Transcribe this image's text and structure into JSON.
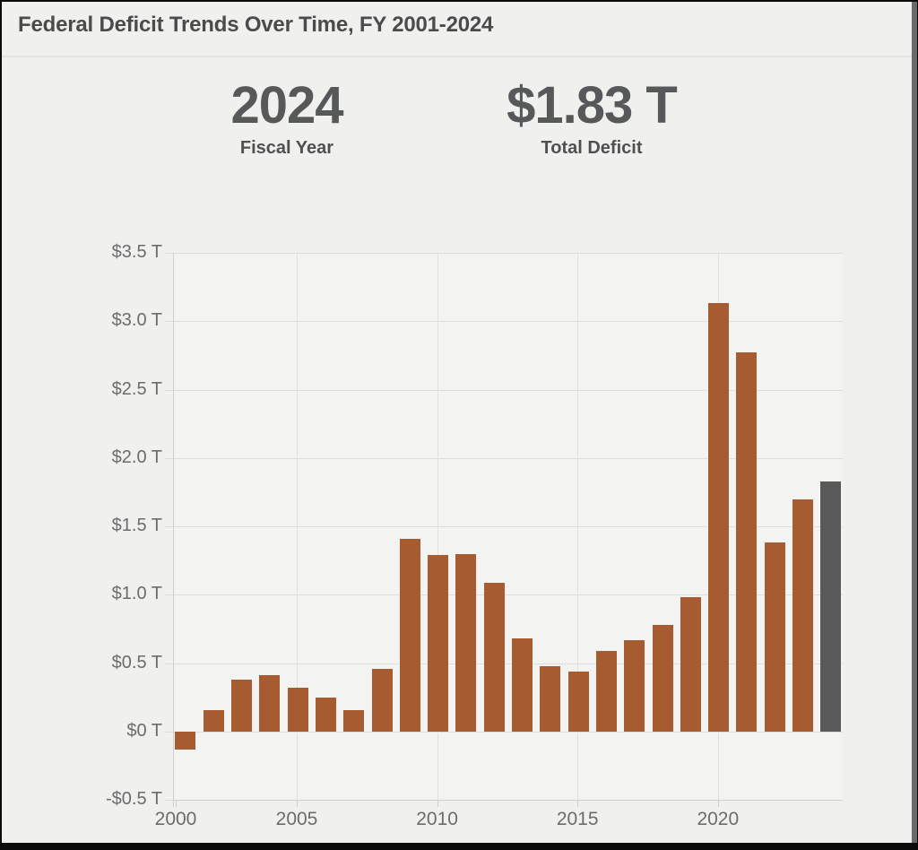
{
  "title": "Federal Deficit Trends Over Time, FY 2001-2024",
  "stats": [
    {
      "value": "2024",
      "label": "Fiscal Year"
    },
    {
      "value": "$1.83 T",
      "label": "Total Deficit"
    }
  ],
  "chart_data": {
    "type": "bar",
    "title": "Federal Deficit Trends Over Time, FY 2001-2024",
    "unit": "trillions of USD",
    "x": [
      2001,
      2002,
      2003,
      2004,
      2005,
      2006,
      2007,
      2008,
      2009,
      2010,
      2011,
      2012,
      2013,
      2014,
      2015,
      2016,
      2017,
      2018,
      2019,
      2020,
      2021,
      2022,
      2023,
      2024
    ],
    "values": [
      -0.13,
      0.16,
      0.38,
      0.41,
      0.32,
      0.25,
      0.16,
      0.46,
      1.41,
      1.29,
      1.3,
      1.09,
      0.68,
      0.48,
      0.44,
      0.59,
      0.67,
      0.78,
      0.98,
      3.13,
      2.77,
      1.38,
      1.7,
      1.83
    ],
    "highlight": {
      "year": 2024,
      "value": 1.83
    },
    "y_ticks": [
      {
        "value": 3.5,
        "label": "$3.5 T"
      },
      {
        "value": 3.0,
        "label": "$3.0 T"
      },
      {
        "value": 2.5,
        "label": "$2.5 T"
      },
      {
        "value": 2.0,
        "label": "$2.0 T"
      },
      {
        "value": 1.5,
        "label": "$1.5 T"
      },
      {
        "value": 1.0,
        "label": "$1.0 T"
      },
      {
        "value": 0.5,
        "label": "$0.5 T"
      },
      {
        "value": 0,
        "label": "$0 T"
      },
      {
        "value": -0.5,
        "label": "-$0.5 T"
      }
    ],
    "x_ticks": [
      {
        "value": 2000,
        "label": "2000"
      },
      {
        "value": 2005,
        "label": "2005"
      },
      {
        "value": 2010,
        "label": "2010"
      },
      {
        "value": 2015,
        "label": "2015"
      },
      {
        "value": 2020,
        "label": "2020"
      }
    ],
    "ylim": [
      -0.5,
      3.5
    ],
    "grid": true,
    "legend": null,
    "colors": {
      "bar": "#a75b31",
      "highlight": "#59595b"
    }
  },
  "page_colors": {
    "background": "#f0f0ef",
    "frame": "#0b0b0b",
    "right_strip": "#6a6a6a",
    "title_text": "#4b4b4c",
    "stat_text": "#57585a",
    "tick_text": "#6c6c6d"
  }
}
